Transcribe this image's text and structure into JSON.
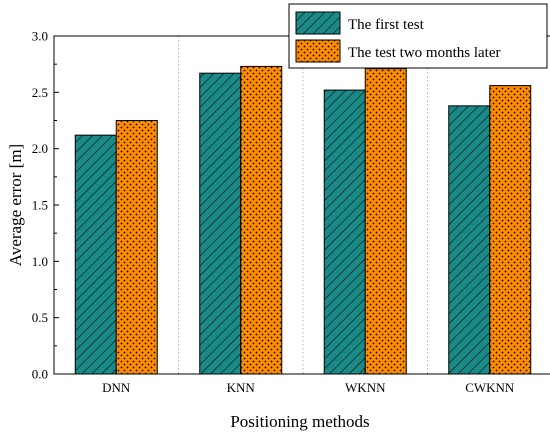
{
  "chart_data": {
    "type": "bar",
    "categories": [
      "DNN",
      "KNN",
      "WKNN",
      "CWKNN"
    ],
    "series": [
      {
        "name": "The first test",
        "values": [
          2.12,
          2.67,
          2.52,
          2.38
        ],
        "color": "#1a8a87",
        "pattern": "diagonal-hatch"
      },
      {
        "name": "The test two months later",
        "values": [
          2.25,
          2.73,
          2.71,
          2.56
        ],
        "color": "#ff8c00",
        "pattern": "dots"
      }
    ],
    "xlabel": "Positioning methods",
    "ylabel": "Average error [m]",
    "ylim": [
      0,
      3.0
    ],
    "yticks": [
      "0.0",
      "0.5",
      "1.0",
      "1.5",
      "2.0",
      "2.5",
      "3.0"
    ],
    "grid": "dotted vertical gridlines",
    "legend_position": "top-right"
  }
}
